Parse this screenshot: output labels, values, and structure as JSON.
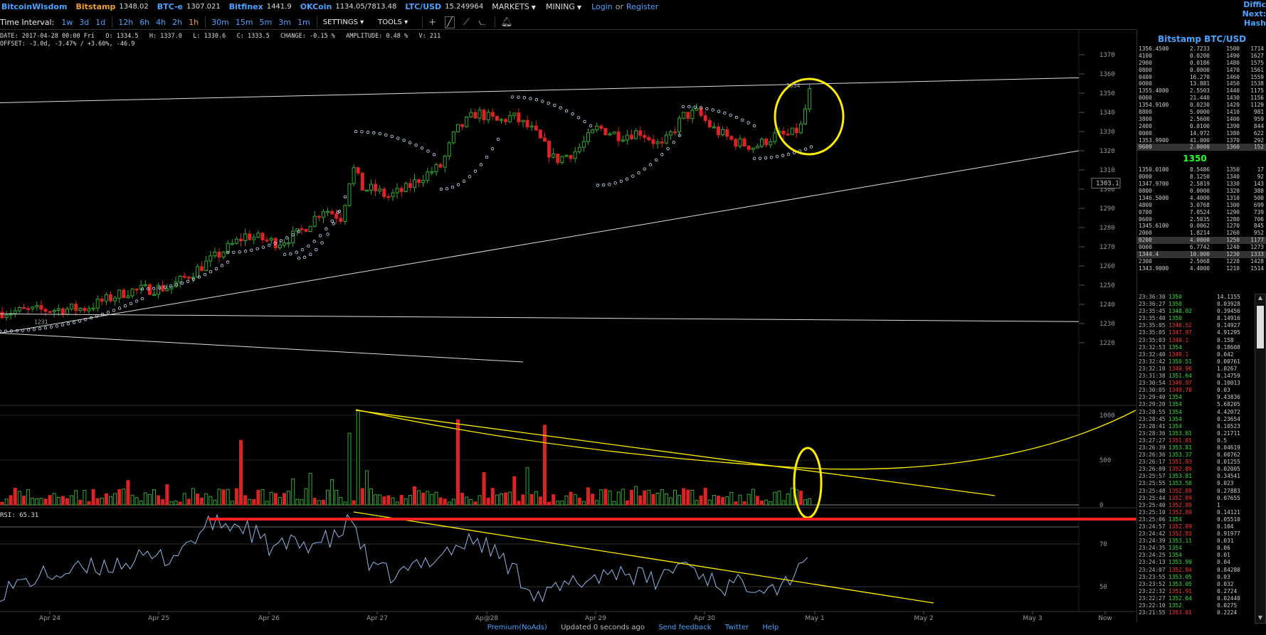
{
  "topbar": {
    "brand": "BitcoinWisdom",
    "tickers": [
      {
        "name": "Bitstamp",
        "price": "1348.02",
        "active": true
      },
      {
        "name": "BTC-e",
        "price": "1307.021"
      },
      {
        "name": "Bitfinex",
        "price": "1441.9"
      },
      {
        "name": "OKCoin",
        "price": "1134.05/7813.48"
      },
      {
        "name": "LTC/USD",
        "price": "15.249964"
      }
    ],
    "markets": "MARKETS",
    "mining": "MINING",
    "login": "Login",
    "or": "or",
    "register": "Register",
    "right_links": [
      "Diffic",
      "Next:",
      "Hash"
    ]
  },
  "toolbar": {
    "label": "Time Interval:",
    "intervals": [
      "1w",
      "3d",
      "1d",
      "12h",
      "6h",
      "4h",
      "2h",
      "1h",
      "30m",
      "15m",
      "5m",
      "3m",
      "1m"
    ],
    "selected": "1h",
    "settings": "SETTINGS",
    "tools": "TOOLS"
  },
  "info": {
    "line1": "DATE: 2017-04-28 00:00 Fri   O: 1334.5   H: 1337.0   L: 1330.6   C: 1333.5   CHANGE: -0.15 %   AMPLITUDE: 0.48 %   V: 211",
    "line2": "OFFSET: -3.0d, -3.47% / +3.60%, -46.9",
    "rsi": "RSI: 65.31"
  },
  "chart_data": {
    "type": "candlestick",
    "pair": "Bitstamp BTC/USD",
    "price_ticks": [
      "1370",
      "1360",
      "1350",
      "1340",
      "1330",
      "1320",
      "1310",
      "1300",
      "1290",
      "1280",
      "1270",
      "1260",
      "1250",
      "1240",
      "1230",
      "1220"
    ],
    "price_range": [
      1215,
      1374
    ],
    "last_price_label": "1303.1",
    "high_label": "1354",
    "low_label": "1231",
    "volume_ticks": [
      "1000",
      "500",
      "0"
    ],
    "rsi_ticks": [
      "70",
      "50"
    ],
    "x_labels": [
      "Apr 24",
      "Apr 25",
      "Apr 26",
      "Apr 27",
      "Ap@28",
      "Apr 29",
      "Apr 30",
      "May 1",
      "May 2",
      "May 3",
      "Now"
    ],
    "colors": {
      "up": "#33aa33",
      "down": "#dd2222",
      "sar": "#cfe0ff",
      "trendline": "#dddddd",
      "annotation": "#ffee00",
      "rsi": "#8fb8e8",
      "support": "#ff2020"
    }
  },
  "orderbook": {
    "title": "Bitstamp BTC/USD",
    "mid": "1350",
    "asks": [
      [
        "1356.45",
        "00",
        "2.7233",
        "1500",
        "1714"
      ],
      [
        "",
        "4100",
        "0.0200",
        "1490",
        "1627"
      ],
      [
        "",
        "2900",
        "0.0186",
        "1480",
        "1575"
      ],
      [
        "",
        "0800",
        "0.0000",
        "1470",
        "1561"
      ],
      [
        "",
        "0400",
        "16.270",
        "1460",
        "1559"
      ],
      [
        "",
        "0000",
        "13.881",
        "1450",
        "1538"
      ],
      [
        "1355.4",
        "000",
        "2.5503",
        "1440",
        "1175"
      ],
      [
        "",
        "0000",
        "21.440",
        "1430",
        "1156"
      ],
      [
        "1354.9",
        "100",
        "0.0230",
        "1420",
        "1129"
      ],
      [
        "",
        "8800",
        "5.0000",
        "1410",
        "981"
      ],
      [
        "",
        "3800",
        "2.5600",
        "1400",
        "959"
      ],
      [
        "",
        "2400",
        "0.0100",
        "1390",
        "844"
      ],
      [
        "",
        "0000",
        "14.972",
        "1380",
        "622"
      ],
      [
        "1353.9",
        "900",
        "41.000",
        "1370",
        "292"
      ],
      [
        "",
        "9600",
        "2.0000",
        "1360",
        "152"
      ]
    ],
    "bids": [
      [
        "1350.0",
        "100",
        "8.5486",
        "1350",
        "17"
      ],
      [
        "",
        "0000",
        "8.1250",
        "1340",
        "92"
      ],
      [
        "1347.9",
        "700",
        "2.5819",
        "1330",
        "143"
      ],
      [
        "",
        "0800",
        "0.0000",
        "1320",
        "388"
      ],
      [
        "1346.5",
        "000",
        "4.4000",
        "1310",
        "500"
      ],
      [
        "",
        "4800",
        "3.0768",
        "1300",
        "699"
      ],
      [
        "",
        "0700",
        "7.0524",
        "1290",
        "739"
      ],
      [
        "",
        "0600",
        "2.5035",
        "1280",
        "706"
      ],
      [
        "1345.6",
        "100",
        "0.0062",
        "1270",
        "845"
      ],
      [
        "",
        "2000",
        "1.8214",
        "1260",
        "952"
      ],
      [
        "",
        "0200",
        "4.0000",
        "1250",
        "1177"
      ],
      [
        "",
        "0000",
        "6.7742",
        "1240",
        "1273"
      ],
      [
        "1344.4",
        "",
        "10.000",
        "1230",
        "1333"
      ],
      [
        "",
        "2300",
        "2.5068",
        "1220",
        "1428"
      ],
      [
        "1343.9000",
        "",
        "4.4000",
        "1210",
        "1514"
      ]
    ]
  },
  "trades": [
    [
      "23:36:30",
      "1350",
      "b",
      "14.1155"
    ],
    [
      "23:36:27",
      "1350",
      "b",
      "0.03928"
    ],
    [
      "23:35:45",
      "1348.02",
      "b",
      "0.39456"
    ],
    [
      "23:35:40",
      "1350",
      "b",
      "8.14916"
    ],
    [
      "23:35:05",
      "1346.52",
      "s",
      "0.14927"
    ],
    [
      "23:35:05",
      "1347.97",
      "s",
      "4.91295"
    ],
    [
      "23:35:03",
      "1349.1",
      "s",
      "0.158"
    ],
    [
      "23:32:53",
      "1354",
      "b",
      "0.18608"
    ],
    [
      "23:32:40",
      "1349.1",
      "s",
      "0.042"
    ],
    [
      "23:32:42",
      "1350.51",
      "b",
      "0.00761"
    ],
    [
      "23:32:10",
      "1349.96",
      "s",
      "1.0267"
    ],
    [
      "23:31:38",
      "1351.64",
      "b",
      "0.14759"
    ],
    [
      "23:30:54",
      "1349.97",
      "s",
      "0.10013"
    ],
    [
      "23:30:05",
      "1349.78",
      "s",
      "0.03"
    ],
    [
      "23:29:40",
      "1354",
      "b",
      "9.43836"
    ],
    [
      "23:29:20",
      "1354",
      "b",
      "5.68205"
    ],
    [
      "23:28:55",
      "1354",
      "b",
      "4.42072"
    ],
    [
      "23:28:45",
      "1354",
      "b",
      "0.23654"
    ],
    [
      "23:28:41",
      "1354",
      "b",
      "0.10523"
    ],
    [
      "23:28:36",
      "1353.81",
      "b",
      "0.21711"
    ],
    [
      "23:27:27",
      "1351.81",
      "s",
      "0.5"
    ],
    [
      "23:26:39",
      "1353.81",
      "b",
      "0.04619"
    ],
    [
      "23:26:36",
      "1353.37",
      "b",
      "0.00762"
    ],
    [
      "23:26:17",
      "1351.93",
      "s",
      "0.01255"
    ],
    [
      "23:26:09",
      "1352.89",
      "s",
      "0.02005"
    ],
    [
      "23:25:57",
      "1353.81",
      "b",
      "0.34541"
    ],
    [
      "23:25:55",
      "1353.58",
      "b",
      "0.023"
    ],
    [
      "23:25:48",
      "1352.89",
      "s",
      "0.27883"
    ],
    [
      "23:25:44",
      "1352.89",
      "s",
      "0.07655"
    ],
    [
      "23:25:40",
      "1352.89",
      "s",
      "1"
    ],
    [
      "23:25:10",
      "1352.89",
      "s",
      "0.14121"
    ],
    [
      "23:25:06",
      "1354",
      "b",
      "0.05510"
    ],
    [
      "23:24:57",
      "1352.89",
      "s",
      "0.104"
    ],
    [
      "23:24:42",
      "1352.83",
      "s",
      "0.91977"
    ],
    [
      "23:24:39",
      "1353.11",
      "b",
      "0.031"
    ],
    [
      "23:24:35",
      "1354",
      "b",
      "0.06"
    ],
    [
      "23:24:25",
      "1354",
      "b",
      "0.01"
    ],
    [
      "23:24:13",
      "1353.99",
      "b",
      "0.04"
    ],
    [
      "23:24:07",
      "1352.84",
      "s",
      "0.84280"
    ],
    [
      "23:23:55",
      "1353.05",
      "b",
      "0.03"
    ],
    [
      "23:23:52",
      "1353.05",
      "b",
      "0.032"
    ],
    [
      "23:22:32",
      "1351.91",
      "s",
      "0.2724"
    ],
    [
      "23:22:27",
      "1352.64",
      "b",
      "0.02440"
    ],
    [
      "23:22:10",
      "1352",
      "b",
      "0.0275"
    ],
    [
      "23:21:55",
      "1353.01",
      "s",
      "0.2224"
    ]
  ],
  "footer": {
    "premium": "Premium(NoAds)",
    "updated": "Updated 0 seconds ago",
    "feedback": "Send feedback",
    "twitter": "Twitter",
    "help": "Help"
  }
}
